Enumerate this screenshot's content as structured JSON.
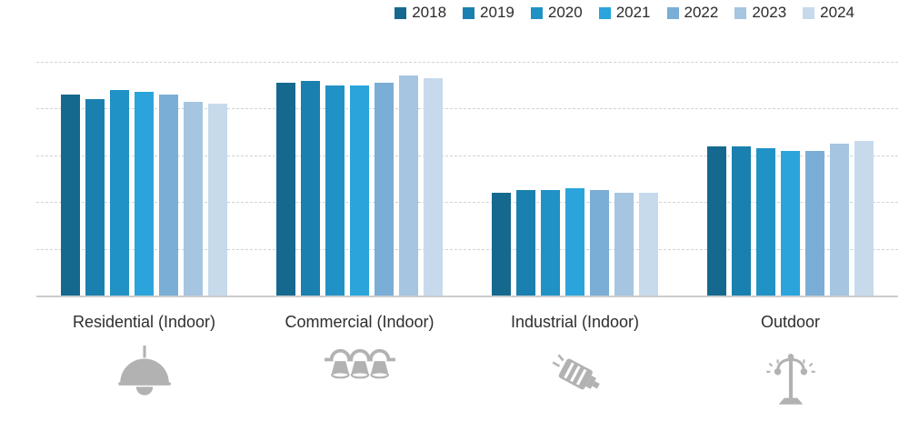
{
  "chart_data": {
    "type": "bar",
    "title": "",
    "xlabel": "",
    "ylabel": "",
    "ylim": [
      0,
      100
    ],
    "grid": "horizontal dashed gridlines, no y-axis tick labels",
    "legend_position": "top",
    "categories": [
      "Residential (Indoor)",
      "Commercial (Indoor)",
      "Industrial (Indoor)",
      "Outdoor"
    ],
    "series": [
      {
        "name": "2018",
        "color": "#16698e",
        "values": [
          86,
          91,
          44,
          64
        ]
      },
      {
        "name": "2019",
        "color": "#1a80af",
        "values": [
          84,
          92,
          45,
          64
        ]
      },
      {
        "name": "2020",
        "color": "#2092c6",
        "values": [
          88,
          90,
          45,
          63
        ]
      },
      {
        "name": "2021",
        "color": "#2ba4dc",
        "values": [
          87,
          90,
          46,
          62
        ]
      },
      {
        "name": "2022",
        "color": "#7aaed6",
        "values": [
          86,
          91,
          45,
          62
        ]
      },
      {
        "name": "2023",
        "color": "#a5c5e1",
        "values": [
          83,
          94,
          44,
          65
        ]
      },
      {
        "name": "2024",
        "color": "#c7daec",
        "values": [
          82,
          93,
          44,
          66
        ]
      }
    ],
    "category_icons": [
      "pendant-lamp-icon",
      "track-lighting-icon",
      "flood-light-icon",
      "street-lamp-icon"
    ],
    "icon_color": "#b2b2b2"
  }
}
